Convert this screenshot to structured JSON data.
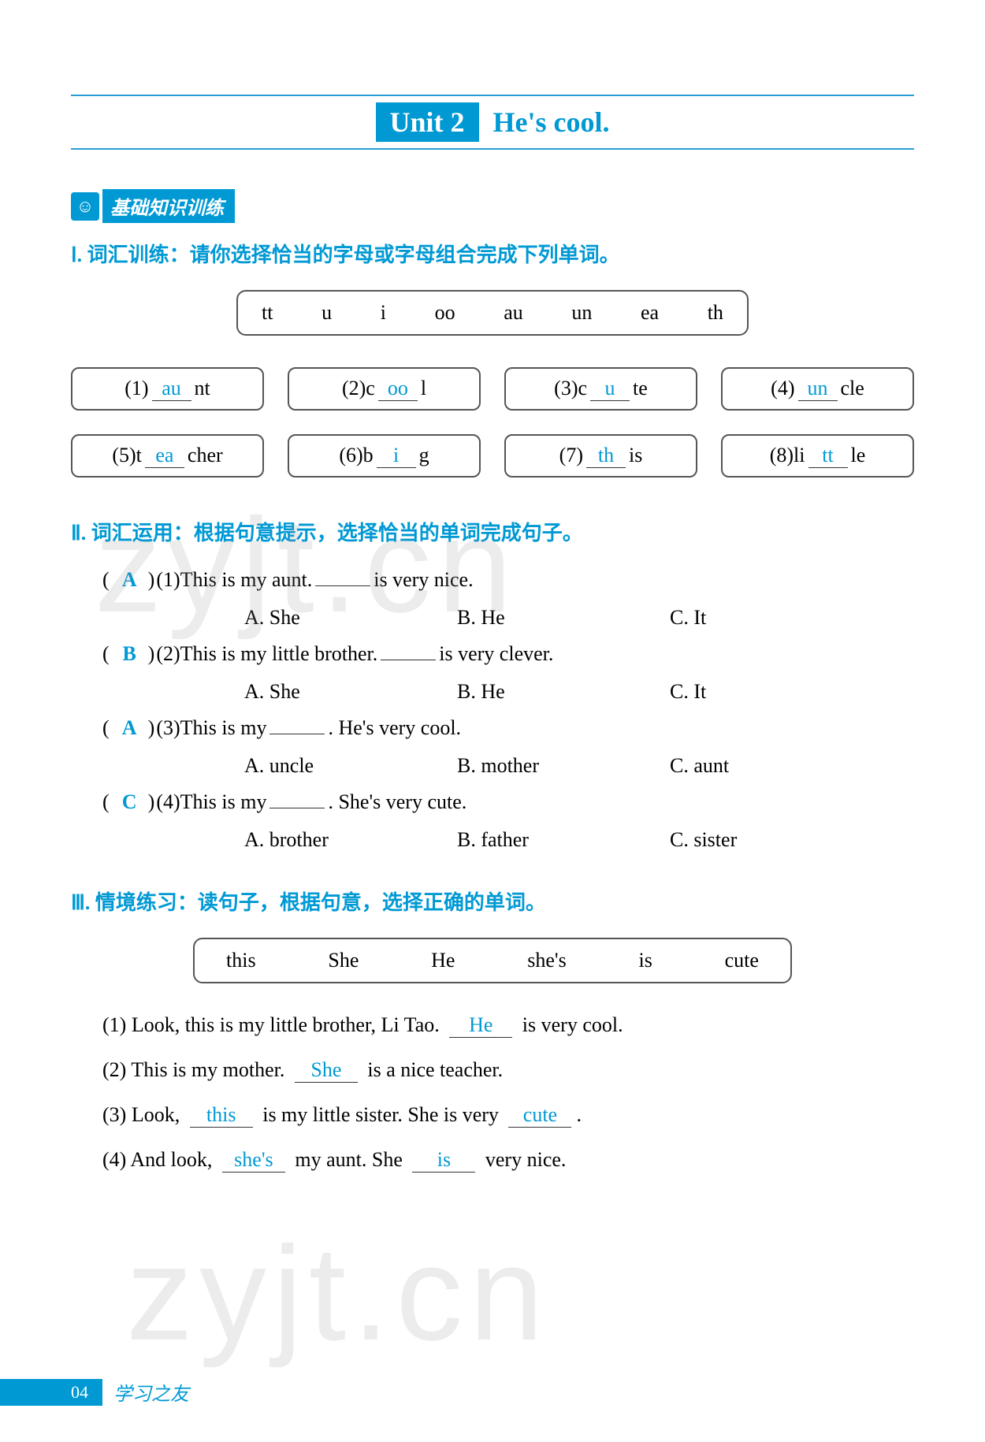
{
  "header": {
    "unit_badge": "Unit 2",
    "unit_title": "He's cool."
  },
  "colors": {
    "accent": "#0099d4",
    "text": "#333333",
    "answer": "#0099d4"
  },
  "banner": {
    "icon_label": "☺",
    "text": "基础知识训练"
  },
  "section1": {
    "heading": "Ⅰ. 词汇训练：请你选择恰当的字母或字母组合完成下列单词。",
    "bank": [
      "tt",
      "u",
      "i",
      "oo",
      "au",
      "un",
      "ea",
      "th"
    ],
    "items": [
      {
        "num": "(1)",
        "pre": "",
        "ans": "au",
        "post": "nt"
      },
      {
        "num": "(2)",
        "pre": "c",
        "ans": "oo",
        "post": "l"
      },
      {
        "num": "(3)",
        "pre": "c",
        "ans": "u",
        "post": "te"
      },
      {
        "num": "(4)",
        "pre": "",
        "ans": "un",
        "post": "cle"
      },
      {
        "num": "(5)",
        "pre": "t",
        "ans": "ea",
        "post": "cher"
      },
      {
        "num": "(6)",
        "pre": "b",
        "ans": "i",
        "post": "g"
      },
      {
        "num": "(7)",
        "pre": "",
        "ans": "th",
        "post": "is"
      },
      {
        "num": "(8)",
        "pre": "li",
        "ans": "tt",
        "post": "le"
      }
    ]
  },
  "section2": {
    "heading": "Ⅱ. 词汇运用：根据句意提示，选择恰当的单词完成句子。",
    "items": [
      {
        "ans": "A",
        "num": "(1)",
        "sentence_pre": "This is my aunt.",
        "sentence_post": "is very nice.",
        "choices": [
          "A. She",
          "B. He",
          "C. It"
        ]
      },
      {
        "ans": "B",
        "num": "(2)",
        "sentence_pre": "This is my little brother.",
        "sentence_post": "is very clever.",
        "choices": [
          "A. She",
          "B. He",
          "C. It"
        ]
      },
      {
        "ans": "A",
        "num": "(3)",
        "sentence_pre": "This is my",
        "sentence_post": ". He's very cool.",
        "choices": [
          "A. uncle",
          "B. mother",
          "C. aunt"
        ]
      },
      {
        "ans": "C",
        "num": "(4)",
        "sentence_pre": "This is my",
        "sentence_post": ". She's very cute.",
        "choices": [
          "A. brother",
          "B. father",
          "C. sister"
        ]
      }
    ]
  },
  "section3": {
    "heading": "Ⅲ. 情境练习：读句子，根据句意，选择正确的单词。",
    "bank": [
      "this",
      "She",
      "He",
      "she's",
      "is",
      "cute"
    ],
    "items": [
      {
        "num": "(1)",
        "parts": [
          "Look, this is my little brother, Li Tao. ",
          {
            "ans": "He"
          },
          " is very cool."
        ]
      },
      {
        "num": "(2)",
        "parts": [
          "This is my mother. ",
          {
            "ans": "She"
          },
          " is a nice teacher."
        ]
      },
      {
        "num": "(3)",
        "parts": [
          "Look, ",
          {
            "ans": "this"
          },
          " is my little sister. She is very ",
          {
            "ans": "cute"
          },
          "."
        ]
      },
      {
        "num": "(4)",
        "parts": [
          "And look, ",
          {
            "ans": "she's"
          },
          " my aunt. She ",
          {
            "ans": "is"
          },
          " very nice."
        ]
      }
    ]
  },
  "footer": {
    "page": "04",
    "label": "学习之友"
  },
  "watermark": "zyjt.cn"
}
